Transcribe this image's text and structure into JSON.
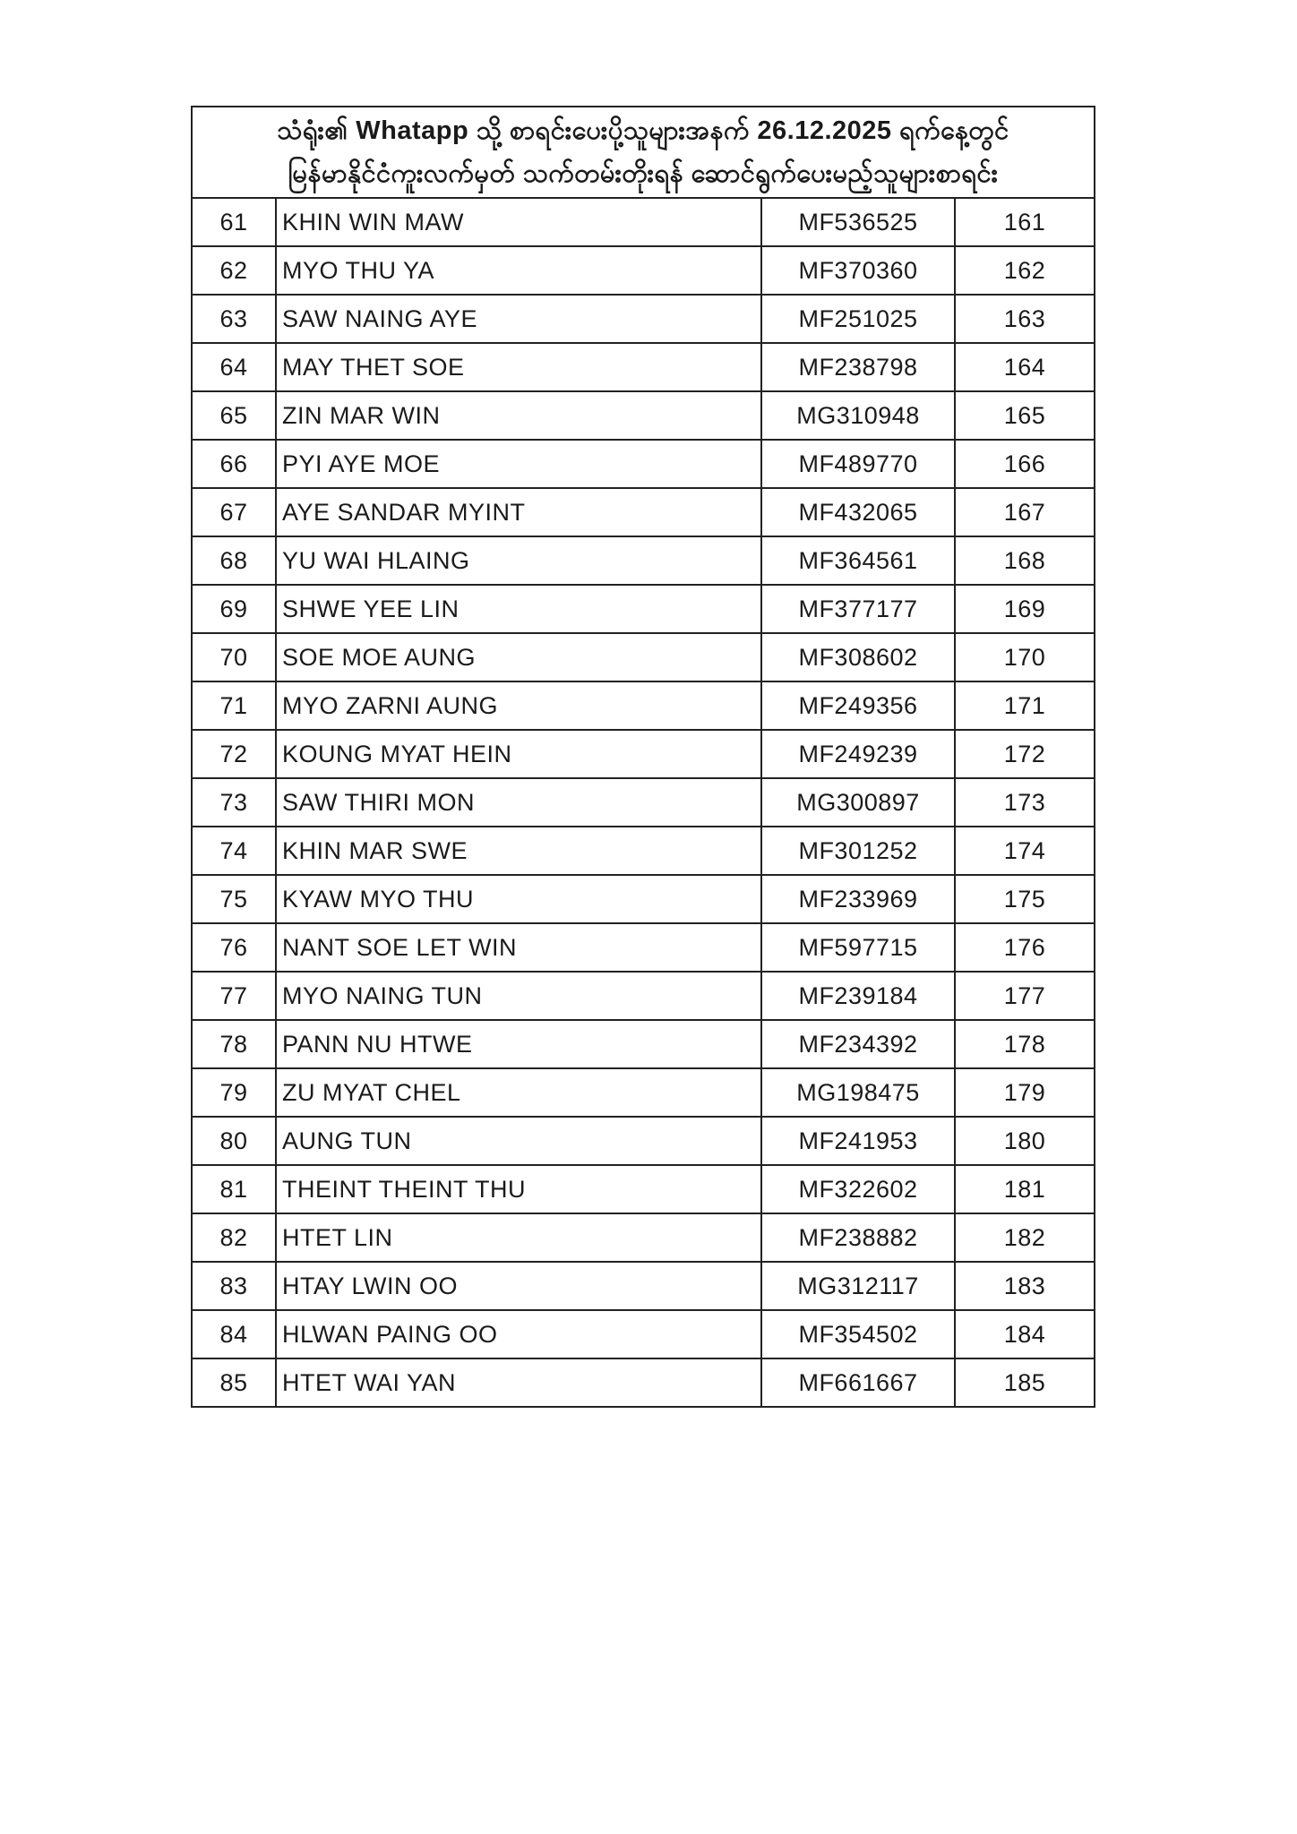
{
  "title": {
    "line1": "သံရုံး၏ Whatapp သို့ စာရင်းပေးပို့သူများအနက် 26.12.2025 ရက်နေ့တွင်",
    "line2": "မြန်မာနိုင်ငံကူးလက်မှတ် သက်တမ်းတိုးရန် ဆောင်ရွက်ပေးမည့်သူများစာရင်း"
  },
  "rows": [
    {
      "no": "61",
      "name": "KHIN WIN MAW",
      "id": "MF536525",
      "seq": "161"
    },
    {
      "no": "62",
      "name": "MYO THU YA",
      "id": "MF370360",
      "seq": "162"
    },
    {
      "no": "63",
      "name": "SAW NAING AYE",
      "id": "MF251025",
      "seq": "163"
    },
    {
      "no": "64",
      "name": "MAY THET SOE",
      "id": "MF238798",
      "seq": "164"
    },
    {
      "no": "65",
      "name": "ZIN MAR WIN",
      "id": "MG310948",
      "seq": "165"
    },
    {
      "no": "66",
      "name": "PYI AYE MOE",
      "id": "MF489770",
      "seq": "166"
    },
    {
      "no": "67",
      "name": "AYE SANDAR MYINT",
      "id": "MF432065",
      "seq": "167"
    },
    {
      "no": "68",
      "name": "YU WAI HLAING",
      "id": "MF364561",
      "seq": "168"
    },
    {
      "no": "69",
      "name": "SHWE YEE LIN",
      "id": "MF377177",
      "seq": "169"
    },
    {
      "no": "70",
      "name": "SOE MOE AUNG",
      "id": "MF308602",
      "seq": "170"
    },
    {
      "no": "71",
      "name": "MYO ZARNI AUNG",
      "id": "MF249356",
      "seq": "171"
    },
    {
      "no": "72",
      "name": "KOUNG MYAT HEIN",
      "id": "MF249239",
      "seq": "172"
    },
    {
      "no": "73",
      "name": "SAW THIRI MON",
      "id": "MG300897",
      "seq": "173"
    },
    {
      "no": "74",
      "name": "KHIN MAR SWE",
      "id": "MF301252",
      "seq": "174"
    },
    {
      "no": "75",
      "name": "KYAW MYO THU",
      "id": "MF233969",
      "seq": "175"
    },
    {
      "no": "76",
      "name": "NANT SOE LET WIN",
      "id": "MF597715",
      "seq": "176"
    },
    {
      "no": "77",
      "name": "MYO NAING TUN",
      "id": "MF239184",
      "seq": "177"
    },
    {
      "no": "78",
      "name": "PANN NU HTWE",
      "id": "MF234392",
      "seq": "178"
    },
    {
      "no": "79",
      "name": "ZU MYAT CHEL",
      "id": "MG198475",
      "seq": "179"
    },
    {
      "no": "80",
      "name": "AUNG TUN",
      "id": "MF241953",
      "seq": "180"
    },
    {
      "no": "81",
      "name": "THEINT THEINT THU",
      "id": "MF322602",
      "seq": "181"
    },
    {
      "no": "82",
      "name": "HTET LIN",
      "id": "MF238882",
      "seq": "182"
    },
    {
      "no": "83",
      "name": "HTAY LWIN OO",
      "id": "MG312117",
      "seq": "183"
    },
    {
      "no": "84",
      "name": "HLWAN PAING OO",
      "id": "MF354502",
      "seq": "184"
    },
    {
      "no": "85",
      "name": "HTET WAI YAN",
      "id": "MF661667",
      "seq": "185"
    }
  ]
}
